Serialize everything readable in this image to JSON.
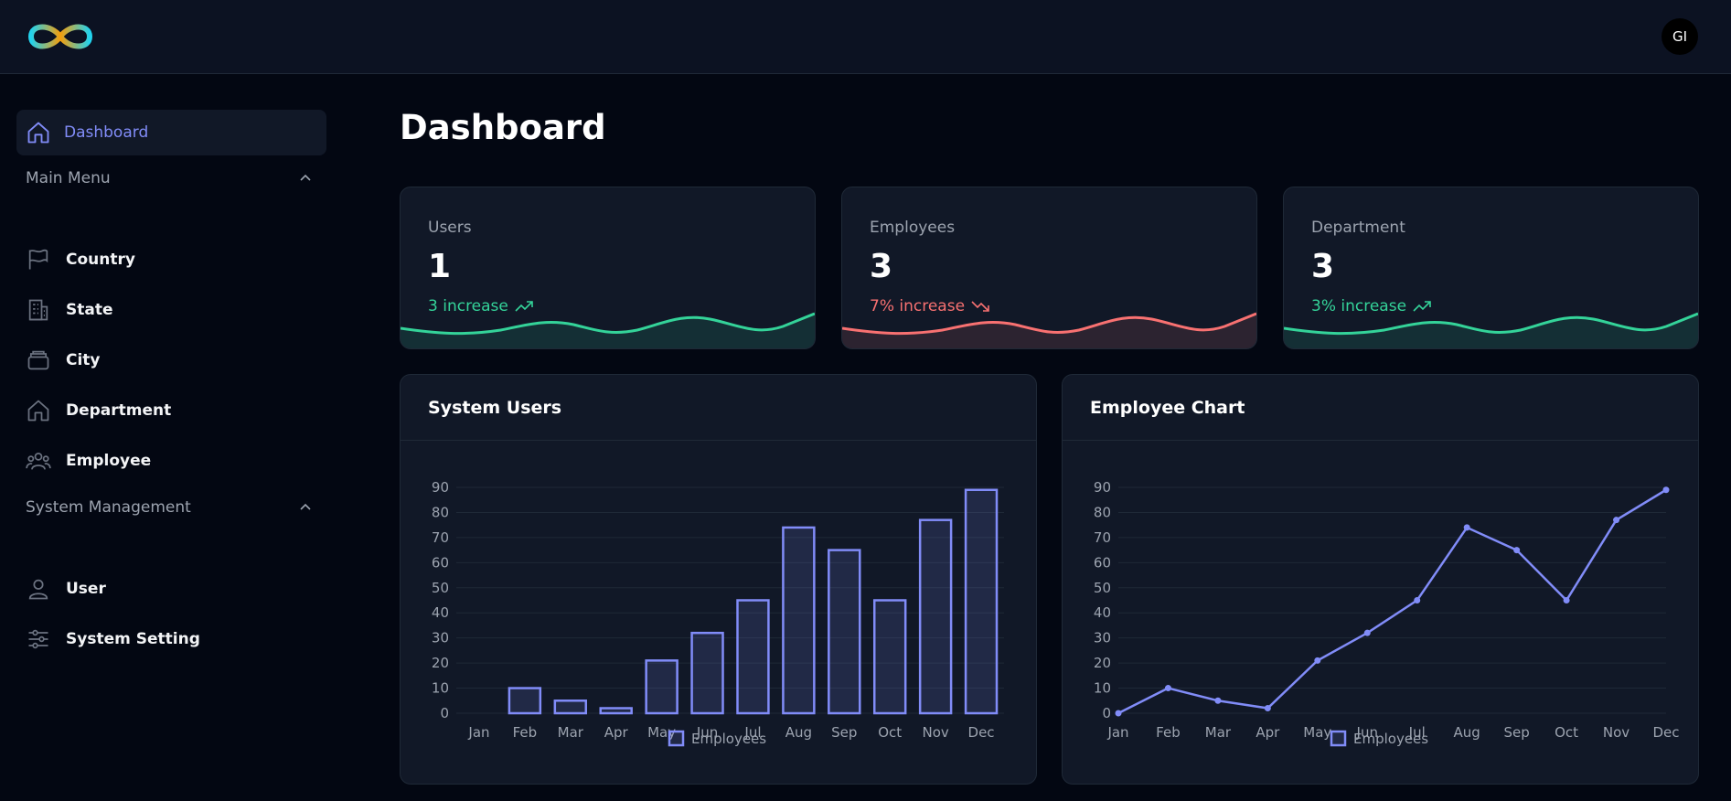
{
  "user": {
    "initials": "GI"
  },
  "sidebar": {
    "dashboard_label": "Dashboard",
    "sections": [
      {
        "title": "Main Menu",
        "items": [
          {
            "label": "Country",
            "icon": "flag-icon"
          },
          {
            "label": "State",
            "icon": "building-icon"
          },
          {
            "label": "City",
            "icon": "city-icon"
          },
          {
            "label": "Department",
            "icon": "home-icon"
          },
          {
            "label": "Employee",
            "icon": "users-icon"
          }
        ]
      },
      {
        "title": "System Management",
        "items": [
          {
            "label": "User",
            "icon": "user-icon"
          },
          {
            "label": "System Setting",
            "icon": "sliders-icon"
          }
        ]
      }
    ]
  },
  "main": {
    "title": "Dashboard"
  },
  "stats": [
    {
      "title": "Users",
      "value": "1",
      "change": "3 increase",
      "color": "#34d399",
      "trend": "up"
    },
    {
      "title": "Employees",
      "value": "3",
      "change": "7% increase",
      "color": "#f87171",
      "trend": "down"
    },
    {
      "title": "Department",
      "value": "3",
      "change": "3% increase",
      "color": "#34d399",
      "trend": "up"
    }
  ],
  "charts": {
    "system_users": {
      "title": "System Users"
    },
    "employee_chart": {
      "title": "Employee Chart"
    }
  },
  "chart_data": [
    {
      "type": "bar",
      "title": "System Users",
      "categories": [
        "Jan",
        "Feb",
        "Mar",
        "Apr",
        "May",
        "Jun",
        "Jul",
        "Aug",
        "Sep",
        "Oct",
        "Nov",
        "Dec"
      ],
      "series": [
        {
          "name": "Employees",
          "values": [
            0,
            10,
            5,
            2,
            21,
            32,
            45,
            74,
            65,
            45,
            77,
            89
          ]
        }
      ],
      "y_ticks": [
        0,
        10,
        20,
        30,
        40,
        50,
        60,
        70,
        80,
        90
      ],
      "ylim": [
        0,
        90
      ],
      "grid": true,
      "legend": "bottom",
      "color": "#818cf8"
    },
    {
      "type": "line",
      "title": "Employee Chart",
      "categories": [
        "Jan",
        "Feb",
        "Mar",
        "Apr",
        "May",
        "Jun",
        "Jul",
        "Aug",
        "Sep",
        "Oct",
        "Nov",
        "Dec"
      ],
      "series": [
        {
          "name": "Employees",
          "values": [
            0,
            10,
            5,
            2,
            21,
            32,
            45,
            74,
            65,
            45,
            77,
            89
          ]
        }
      ],
      "y_ticks": [
        0,
        10,
        20,
        30,
        40,
        50,
        60,
        70,
        80,
        90
      ],
      "ylim": [
        0,
        90
      ],
      "grid": true,
      "legend": "bottom",
      "color": "#818cf8"
    }
  ]
}
